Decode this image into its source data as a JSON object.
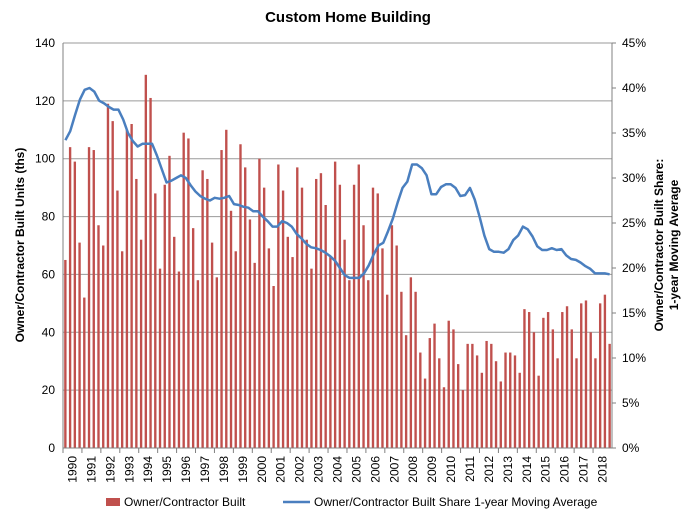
{
  "chart_data": {
    "type": "bar",
    "title": "Custom Home Building",
    "ylabel": "Owner/Contractor Built Units (ths)",
    "y2label_line1": "Owner/Contractor Built Share:",
    "y2label_line2": "1-year Moving Average",
    "ylim": [
      0,
      140
    ],
    "yticks": [
      0,
      20,
      40,
      60,
      80,
      100,
      120,
      140
    ],
    "y2lim": [
      0,
      45
    ],
    "y2ticks": [
      "0%",
      "5%",
      "10%",
      "15%",
      "20%",
      "25%",
      "30%",
      "35%",
      "40%",
      "45%"
    ],
    "grid": true,
    "legend_position": "bottom",
    "x_start_year": 1990,
    "x_end_year": 2018,
    "xticks": [
      "1990",
      "1991",
      "1992",
      "1993",
      "1994",
      "1995",
      "1996",
      "1997",
      "1998",
      "1999",
      "2000",
      "2001",
      "2002",
      "2003",
      "2004",
      "2005",
      "2006",
      "2007",
      "2008",
      "2009",
      "2010",
      "2011",
      "2012",
      "2013",
      "2014",
      "2015",
      "2016",
      "2017",
      "2018"
    ],
    "series": [
      {
        "name": "Owner/Contractor Built",
        "kind": "bar",
        "axis": "left",
        "color": "#c0504d",
        "values": [
          65,
          104,
          99,
          71,
          52,
          104,
          103,
          77,
          70,
          119,
          113,
          89,
          68,
          110,
          112,
          93,
          72,
          129,
          121,
          88,
          62,
          91,
          101,
          73,
          61,
          109,
          107,
          76,
          58,
          96,
          93,
          71,
          59,
          103,
          110,
          82,
          68,
          105,
          97,
          79,
          64,
          100,
          90,
          69,
          56,
          98,
          89,
          73,
          66,
          97,
          90,
          72,
          62,
          93,
          95,
          84,
          66,
          99,
          91,
          72,
          58,
          91,
          98,
          77,
          58,
          90,
          88,
          69,
          53,
          77,
          70,
          54,
          39,
          59,
          54,
          33,
          24,
          38,
          43,
          31,
          21,
          44,
          41,
          29,
          20,
          36,
          36,
          32,
          26,
          37,
          36,
          30,
          23,
          33,
          33,
          32,
          26,
          48,
          47,
          40,
          25,
          45,
          47,
          41,
          31,
          47,
          49,
          41,
          31,
          50,
          51,
          40,
          31,
          50,
          53,
          36
        ]
      },
      {
        "name": "Owner/Contractor Built Share 1-year Moving Average",
        "kind": "line",
        "axis": "right",
        "color": "#4a7fbf",
        "values": [
          34.2,
          35.2,
          37.0,
          38.7,
          39.8,
          40.0,
          39.6,
          38.6,
          38.3,
          37.9,
          37.6,
          37.6,
          36.5,
          35.0,
          34.1,
          33.5,
          33.8,
          33.8,
          33.8,
          32.5,
          31.0,
          29.5,
          29.7,
          30.0,
          30.3,
          30.0,
          29.2,
          28.5,
          28.0,
          27.7,
          27.5,
          27.8,
          27.7,
          27.8,
          28.0,
          27.1,
          27.0,
          26.8,
          26.7,
          26.3,
          26.3,
          25.7,
          25.2,
          24.6,
          24.6,
          25.2,
          25.0,
          24.6,
          23.8,
          23.3,
          22.7,
          22.3,
          22.2,
          22.0,
          21.7,
          21.3,
          20.8,
          20.0,
          19.2,
          18.9,
          18.9,
          18.9,
          19.4,
          20.3,
          21.5,
          22.5,
          22.8,
          24.1,
          25.5,
          27.3,
          28.9,
          29.6,
          31.5,
          31.5,
          31.1,
          30.3,
          28.2,
          28.2,
          29.0,
          29.3,
          29.3,
          28.9,
          28.0,
          28.1,
          28.9,
          27.6,
          25.7,
          23.6,
          22.1,
          21.8,
          21.8,
          21.7,
          22.1,
          23.1,
          23.6,
          24.6,
          24.3,
          23.5,
          22.4,
          22.0,
          22.0,
          22.2,
          22.0,
          22.1,
          21.4,
          21.0,
          20.9,
          20.6,
          20.2,
          19.9,
          19.4,
          19.4,
          19.4,
          19.3
        ]
      }
    ]
  }
}
